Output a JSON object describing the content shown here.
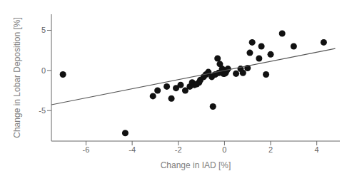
{
  "chart_data": {
    "type": "scatter",
    "xlabel": "Change in IAD [%]",
    "ylabel": "Change in Lobar Deposition [%]",
    "xlim": [
      -7.5,
      5.0
    ],
    "ylim": [
      -8.8,
      7.0
    ],
    "xticks": [
      -6,
      -4,
      -2,
      0,
      2,
      4
    ],
    "yticks": [
      -5,
      0,
      5
    ],
    "grid": false,
    "series": [
      {
        "type": "scatter",
        "color": "#111111",
        "x": [
          -7.0,
          -4.3,
          -3.1,
          -2.9,
          -2.5,
          -2.3,
          -2.1,
          -1.9,
          -1.7,
          -1.5,
          -1.4,
          -1.3,
          -1.2,
          -1.1,
          -1.05,
          -0.9,
          -0.8,
          -0.7,
          -0.55,
          -0.5,
          -0.4,
          -0.3,
          -0.25,
          -0.2,
          -0.15,
          -0.1,
          -0.05,
          0.0,
          0.0,
          0.05,
          0.1,
          0.15,
          0.5,
          0.7,
          0.8,
          1.0,
          1.1,
          1.2,
          1.5,
          1.6,
          1.8,
          2.0,
          2.5,
          3.0,
          4.3
        ],
        "values": [
          -0.5,
          -7.8,
          -3.2,
          -2.5,
          -2.0,
          -3.5,
          -2.2,
          -1.8,
          -2.5,
          -2.0,
          -1.5,
          -1.8,
          -1.7,
          -1.5,
          -1.2,
          -0.8,
          -0.5,
          -0.2,
          -0.8,
          -4.5,
          -0.5,
          1.5,
          -0.3,
          0.8,
          -0.2,
          0.2,
          -0.4,
          -0.4,
          0.0,
          -0.3,
          0.0,
          0.2,
          -0.4,
          0.2,
          -0.3,
          0.3,
          2.2,
          3.5,
          1.5,
          3.0,
          -0.5,
          2.0,
          4.6,
          3.0,
          3.5
        ]
      },
      {
        "type": "line",
        "color": "#555555",
        "x": [
          -7.5,
          4.8
        ],
        "values": [
          -4.275,
          2.736
        ]
      }
    ]
  }
}
